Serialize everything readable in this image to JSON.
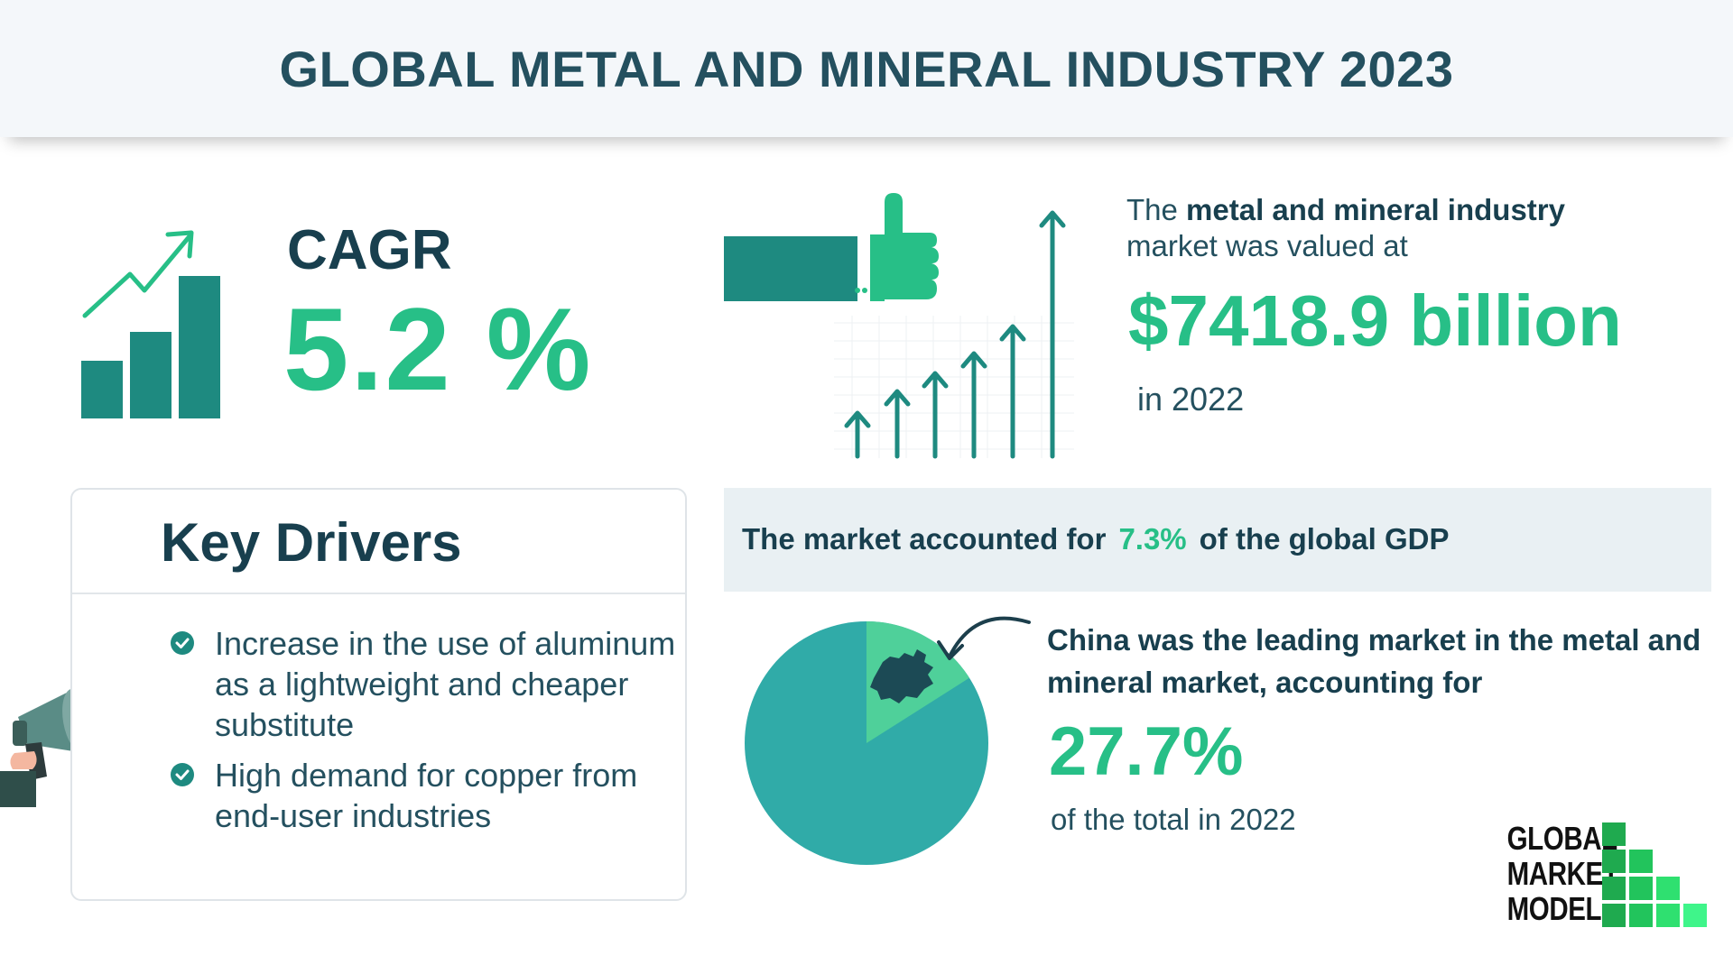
{
  "header": {
    "title": "GLOBAL METAL AND MINERAL INDUSTRY 2023"
  },
  "cagr": {
    "label": "CAGR",
    "value": "5.2 %"
  },
  "market_value": {
    "line1_prefix": "The ",
    "line1_bold": "metal and mineral industry",
    "line2": "market was valued at",
    "value": "$7418.9 billion",
    "year_text": "in 2022"
  },
  "key_drivers": {
    "title": "Key Drivers",
    "items": [
      "Increase in the use of aluminum as a lightweight and cheaper substitute",
      "High demand for copper from end-user industries"
    ]
  },
  "gdp": {
    "prefix": "The market accounted for",
    "value": "7.3%",
    "suffix": "of the global GDP"
  },
  "china": {
    "text": "China was the leading market in the metal and mineral market, accounting for",
    "value": "27.7%",
    "subtext": "of the total in 2022",
    "share_fraction": 0.277
  },
  "logo": {
    "lines": [
      "GLOBAL",
      "MARKET",
      "MODEL"
    ]
  },
  "colors": {
    "accent_green": "#27bf87",
    "teal": "#1e8a80",
    "pie_main": "#30aba8",
    "pie_slice": "#4fd09a",
    "dark_text": "#183f4e"
  }
}
